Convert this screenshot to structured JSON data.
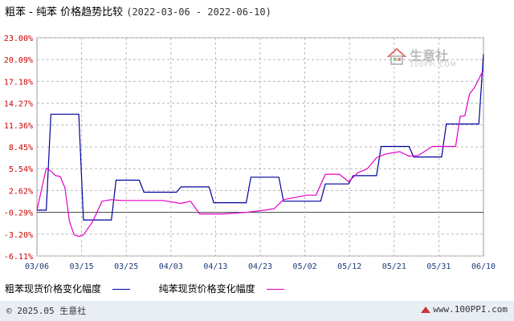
{
  "header": {
    "title": "粗苯 - 纯苯 价格趋势比较",
    "date_range": "(2022-03-06 - 2022-06-10)"
  },
  "watermark": {
    "name": "生意社",
    "site": "100PPI.COM"
  },
  "legend": {
    "series1_label": "粗苯现货价格变化幅度",
    "series2_label": "纯苯现货价格变化幅度"
  },
  "footer": {
    "copyright": "© 2025.05 生意社",
    "site": "www.100PPI.com"
  },
  "colors": {
    "series1": "#0000a0",
    "series2": "#e000c8",
    "ytick": "#cc0000",
    "grid": "#b8b8b8",
    "zero_line": "#404040"
  },
  "chart_data": {
    "type": "line",
    "title": "粗苯 - 纯苯 价格趋势比较",
    "xlabel": "",
    "ylabel": "",
    "x_ticks": [
      "03/06",
      "03/15",
      "03/25",
      "04/03",
      "04/13",
      "04/23",
      "05/02",
      "05/12",
      "05/21",
      "05/31",
      "06/10"
    ],
    "y_ticks": [
      "23.00%",
      "20.09%",
      "17.18%",
      "14.27%",
      "11.36%",
      "8.45%",
      "5.54%",
      "2.62%",
      "-0.29%",
      "-3.20%",
      "-6.11%"
    ],
    "ylim": [
      -6.11,
      23.0
    ],
    "xlim": [
      "2022-03-06",
      "2022-06-10"
    ],
    "grid": true,
    "legend_position": "bottom",
    "series": [
      {
        "name": "粗苯现货价格变化幅度",
        "x": [
          "2022-03-06",
          "2022-03-08",
          "2022-03-09",
          "2022-03-15",
          "2022-03-16",
          "2022-03-22",
          "2022-03-23",
          "2022-03-28",
          "2022-03-29",
          "2022-04-05",
          "2022-04-06",
          "2022-04-12",
          "2022-04-13",
          "2022-04-20",
          "2022-04-21",
          "2022-04-27",
          "2022-04-28",
          "2022-05-06",
          "2022-05-07",
          "2022-05-12",
          "2022-05-13",
          "2022-05-18",
          "2022-05-19",
          "2022-05-25",
          "2022-05-26",
          "2022-06-01",
          "2022-06-02",
          "2022-06-08",
          "2022-06-09",
          "2022-06-10"
        ],
        "values": [
          0.0,
          0.0,
          12.8,
          12.8,
          -1.3,
          -1.3,
          4.0,
          4.0,
          2.4,
          2.4,
          3.1,
          3.1,
          1.0,
          1.0,
          4.4,
          4.4,
          1.2,
          1.2,
          3.5,
          3.5,
          4.6,
          4.6,
          8.5,
          8.5,
          7.1,
          7.1,
          11.5,
          11.5,
          11.5,
          20.8
        ]
      },
      {
        "name": "纯苯现货价格变化幅度",
        "x": [
          "2022-03-06",
          "2022-03-07",
          "2022-03-08",
          "2022-03-09",
          "2022-03-10",
          "2022-03-11",
          "2022-03-12",
          "2022-03-13",
          "2022-03-14",
          "2022-03-15",
          "2022-03-16",
          "2022-03-17",
          "2022-03-18",
          "2022-03-20",
          "2022-03-22",
          "2022-03-24",
          "2022-03-27",
          "2022-04-02",
          "2022-04-06",
          "2022-04-08",
          "2022-04-10",
          "2022-04-15",
          "2022-04-20",
          "2022-04-24",
          "2022-04-26",
          "2022-04-28",
          "2022-05-03",
          "2022-05-05",
          "2022-05-07",
          "2022-05-10",
          "2022-05-12",
          "2022-05-14",
          "2022-05-16",
          "2022-05-18",
          "2022-05-20",
          "2022-05-23",
          "2022-05-25",
          "2022-05-27",
          "2022-05-30",
          "2022-06-01",
          "2022-06-04",
          "2022-06-05",
          "2022-06-06",
          "2022-06-07",
          "2022-06-08",
          "2022-06-10"
        ],
        "values": [
          0.0,
          2.8,
          5.6,
          5.2,
          4.6,
          4.5,
          3.0,
          -1.5,
          -3.3,
          -3.5,
          -3.3,
          -2.4,
          -1.5,
          1.2,
          1.4,
          1.3,
          1.3,
          1.3,
          0.9,
          1.2,
          -0.5,
          -0.5,
          -0.3,
          0.0,
          0.2,
          1.4,
          2.0,
          2.0,
          4.8,
          4.8,
          3.8,
          5.0,
          5.5,
          7.0,
          7.5,
          7.8,
          7.2,
          7.3,
          8.5,
          8.5,
          8.5,
          12.5,
          12.6,
          15.5,
          16.3,
          18.7
        ]
      }
    ]
  }
}
